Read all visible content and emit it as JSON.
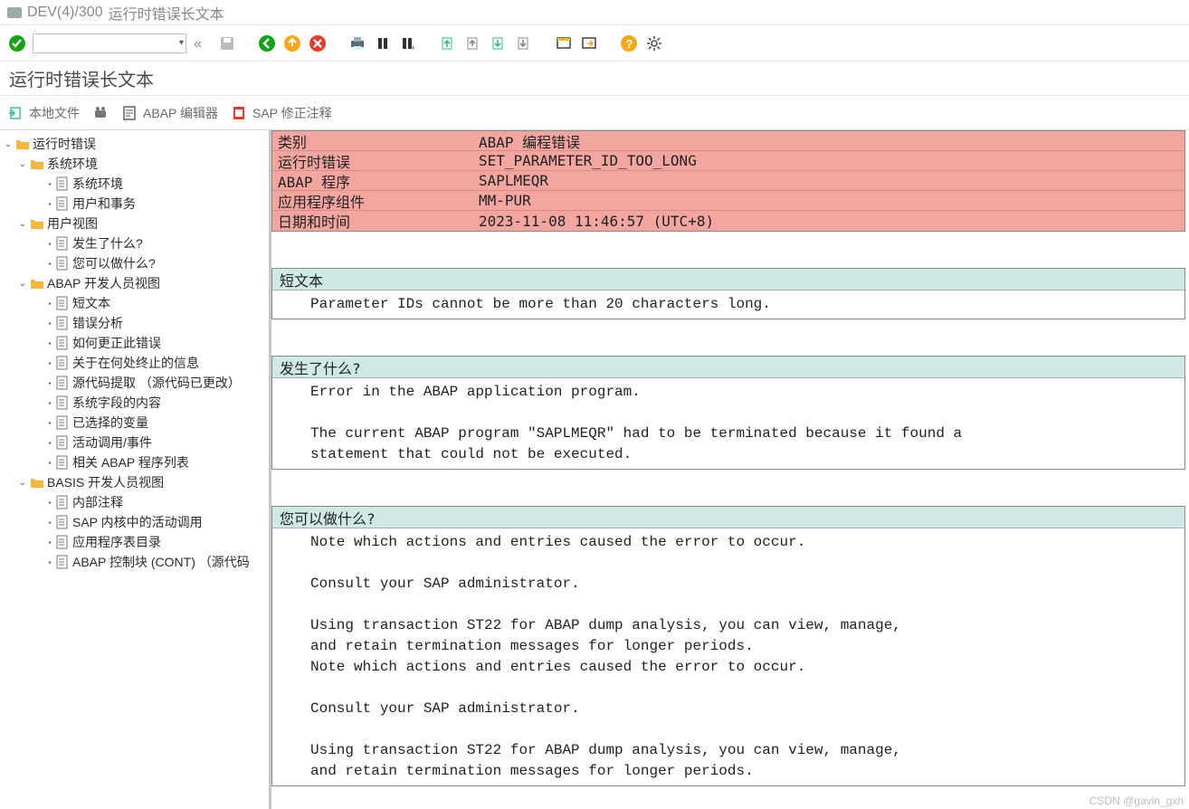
{
  "window": {
    "system_id": "DEV(4)/300",
    "title_suffix": "运行时错误长文本"
  },
  "page_header": "运行时错误长文本",
  "app_toolbar": {
    "local_file": "本地文件",
    "abap_editor": "ABAP 编辑器",
    "sap_note": "SAP 修正注释"
  },
  "tree": {
    "root": "运行时错误",
    "env": {
      "label": "系统环境",
      "children": [
        "系统环境",
        "用户和事务"
      ]
    },
    "user_view": {
      "label": "用户视图",
      "children": [
        "发生了什么?",
        "您可以做什么?"
      ]
    },
    "abap_dev": {
      "label": "ABAP 开发人员视图",
      "children": [
        "短文本",
        "错误分析",
        "如何更正此错误",
        "关于在何处终止的信息",
        "源代码提取 （源代码已更改）",
        "系统字段的内容",
        "已选择的变量",
        "活动调用/事件",
        "相关 ABAP 程序列表"
      ]
    },
    "basis_dev": {
      "label": "BASIS 开发人员视图",
      "children": [
        "内部注释",
        "SAP 内核中的活动调用",
        "应用程序表目录",
        "ABAP 控制块 (CONT) （源代码"
      ]
    }
  },
  "error_table": {
    "rows": [
      {
        "k": "类别",
        "v": "ABAP 编程错误"
      },
      {
        "k": "运行时错误",
        "v": "SET_PARAMETER_ID_TOO_LONG"
      },
      {
        "k": "ABAP 程序",
        "v": "SAPLMEQR"
      },
      {
        "k": "应用程序组件",
        "v": "MM-PUR"
      },
      {
        "k": "日期和时间",
        "v": "2023-11-08 11:46:57 (UTC+8)"
      }
    ]
  },
  "sections": {
    "short_text": {
      "title": "短文本",
      "lines": [
        "Parameter IDs cannot be more than 20 characters long."
      ]
    },
    "what_happened": {
      "title": "发生了什么?",
      "lines": [
        "Error in the ABAP application program.",
        "",
        "The current ABAP program \"SAPLMEQR\" had to be terminated because it found a",
        "statement that could not be executed."
      ]
    },
    "what_can_do": {
      "title": "您可以做什么?",
      "lines": [
        "Note which actions and entries caused the error to occur.",
        "",
        "Consult your SAP administrator.",
        "",
        "Using transaction ST22 for ABAP dump analysis, you can view, manage,",
        "and retain termination messages for longer periods.",
        "Note which actions and entries caused the error to occur.",
        "",
        "Consult your SAP administrator.",
        "",
        "Using transaction ST22 for ABAP dump analysis, you can view, manage,",
        "and retain termination messages for longer periods."
      ]
    }
  },
  "colors": {
    "error_row_bg": "#f3a6a0",
    "section_head_bg": "#cfe9e7",
    "folder": "#f4b63f",
    "doc_border": "#777"
  },
  "watermark": "CSDN @gavin_gxh"
}
